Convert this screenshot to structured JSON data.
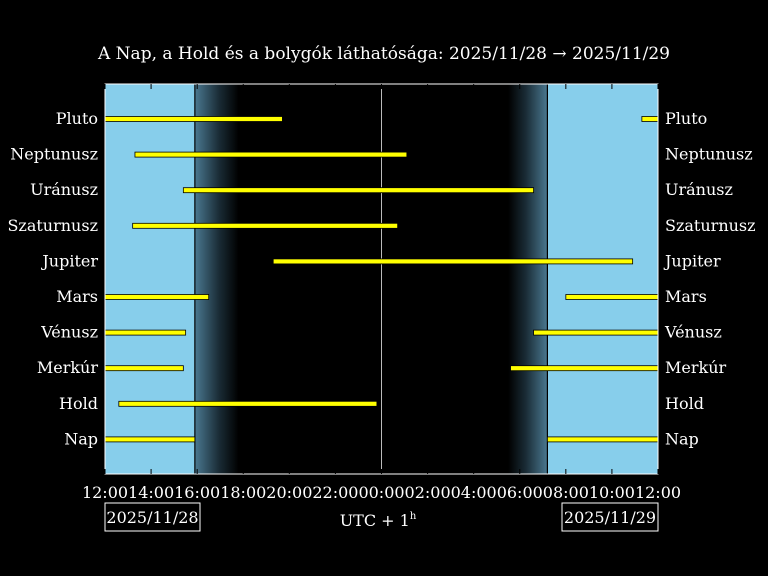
{
  "chart_data": {
    "type": "bar",
    "title": "A Nap, a Hold és a bolygók láthatósága: 2025/11/28 → 2025/11/29",
    "xlabel": "UTC + 1",
    "xlabel_sup": "h",
    "date_start": "2025/11/28",
    "date_end": "2025/11/29",
    "x_range_hours": [
      12,
      36
    ],
    "x_tick_labels": [
      "12:00",
      "14:00",
      "16:00",
      "18:00",
      "20:00",
      "22:00",
      "00:00",
      "02:00",
      "04:00",
      "06:00",
      "08:00",
      "10:00",
      "12:00"
    ],
    "midnight_hour": 24,
    "day_spans": [
      [
        12,
        15.9
      ],
      [
        31.2,
        36
      ]
    ],
    "twilight": {
      "evening": [
        15.9,
        17.8
      ],
      "morning": [
        29.5,
        31.2
      ]
    },
    "categories": [
      "Pluto",
      "Neptunusz",
      "Uránusz",
      "Szaturnusz",
      "Jupiter",
      "Mars",
      "Vénusz",
      "Merkúr",
      "Hold",
      "Nap"
    ],
    "series": [
      {
        "segments": [
          [
            12.0,
            19.7
          ],
          [
            35.3,
            36.0
          ]
        ]
      },
      {
        "segments": [
          [
            13.3,
            25.1
          ]
        ]
      },
      {
        "segments": [
          [
            15.4,
            30.6
          ]
        ]
      },
      {
        "segments": [
          [
            13.2,
            24.7
          ]
        ]
      },
      {
        "segments": [
          [
            19.3,
            34.9
          ]
        ]
      },
      {
        "segments": [
          [
            12.0,
            16.5
          ],
          [
            32.0,
            36.0
          ]
        ]
      },
      {
        "segments": [
          [
            12.0,
            15.5
          ],
          [
            30.6,
            36.0
          ]
        ]
      },
      {
        "segments": [
          [
            12.0,
            15.4
          ],
          [
            29.6,
            36.0
          ]
        ]
      },
      {
        "segments": [
          [
            12.6,
            23.8
          ]
        ]
      },
      {
        "segments": [
          [
            12.0,
            15.9
          ],
          [
            31.2,
            36.0
          ]
        ]
      }
    ],
    "colors": {
      "day": "#87ceeb",
      "night": "#000000",
      "bar": "#ffff00",
      "twilight": "#4a7890"
    }
  }
}
